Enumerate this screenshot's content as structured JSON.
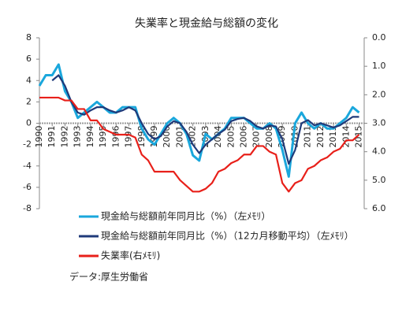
{
  "chart_data": {
    "type": "line",
    "title": "失業率と現金給与総額の変化",
    "source": "データ:厚生労働省",
    "x": [
      1990,
      1990.5,
      1991,
      1991.5,
      1992,
      1992.5,
      1993,
      1993.5,
      1994,
      1994.5,
      1995,
      1995.5,
      1996,
      1996.5,
      1997,
      1997.5,
      1998,
      1998.5,
      1999,
      1999.5,
      2000,
      2000.5,
      2001,
      2001.5,
      2002,
      2002.5,
      2003,
      2003.5,
      2004,
      2004.5,
      2005,
      2005.5,
      2006,
      2006.5,
      2007,
      2007.5,
      2008,
      2008.5,
      2009,
      2009.5,
      2010,
      2010.5,
      2011,
      2011.5,
      2012,
      2012.5,
      2013,
      2013.5,
      2014,
      2014.5,
      2015
    ],
    "series": [
      {
        "name": "現金給与総額前年同月比（%）（左ﾒﾓﾘ）",
        "color": "#1aa7dc",
        "values": [
          3.5,
          4.5,
          4.5,
          5.5,
          3.0,
          2.0,
          0.5,
          1.0,
          1.5,
          2.0,
          1.5,
          1.0,
          1.0,
          1.5,
          1.5,
          1.5,
          -0.5,
          -1.5,
          -2.0,
          -1.0,
          0.0,
          0.5,
          0.0,
          -1.0,
          -3.0,
          -3.5,
          -1.0,
          -1.5,
          -1.0,
          -0.5,
          0.5,
          0.5,
          0.5,
          0.0,
          -0.5,
          -0.5,
          0.0,
          -0.5,
          -2.5,
          -5.0,
          0.0,
          1.0,
          0.0,
          -0.5,
          0.0,
          -0.5,
          -0.5,
          0.0,
          0.5,
          1.5,
          1.0
        ]
      },
      {
        "name": "現金給与総額前年同月比（%）（12カ月移動平均）（左ﾒﾓﾘ）",
        "color": "#1f3a7a",
        "values": [
          null,
          null,
          4.0,
          4.5,
          3.5,
          2.0,
          1.0,
          0.8,
          1.2,
          1.5,
          1.5,
          1.2,
          1.0,
          1.2,
          1.5,
          1.2,
          0.0,
          -1.0,
          -1.5,
          -1.2,
          -0.3,
          0.2,
          0.0,
          -0.8,
          -2.0,
          -2.8,
          -2.0,
          -1.5,
          -1.0,
          -0.6,
          0.2,
          0.4,
          0.5,
          0.2,
          -0.3,
          -0.5,
          -0.2,
          -0.3,
          -1.5,
          -3.8,
          -2.5,
          0.0,
          0.3,
          -0.2,
          0.0,
          -0.2,
          -0.4,
          -0.2,
          0.2,
          0.6,
          0.6
        ]
      },
      {
        "name": "失業率(右ﾒﾓﾘ)",
        "color": "#e8201a",
        "axis": "y2",
        "values": [
          2.1,
          2.1,
          2.1,
          2.1,
          2.2,
          2.2,
          2.5,
          2.5,
          2.9,
          2.9,
          3.2,
          3.3,
          3.4,
          3.4,
          3.4,
          3.5,
          4.1,
          4.3,
          4.7,
          4.7,
          4.7,
          4.7,
          5.0,
          5.2,
          5.4,
          5.4,
          5.3,
          5.1,
          4.7,
          4.6,
          4.4,
          4.3,
          4.1,
          4.1,
          3.8,
          3.8,
          4.0,
          4.1,
          5.1,
          5.4,
          5.1,
          5.0,
          4.6,
          4.5,
          4.3,
          4.2,
          4.0,
          3.9,
          3.6,
          3.6,
          3.4
        ]
      }
    ],
    "xlim": [
      1990,
      2015.4
    ],
    "xticks": [
      1990,
      1991,
      1992,
      1993,
      1994,
      1995,
      1996,
      1997,
      1998,
      1999,
      2000,
      2001,
      2002,
      2003,
      2004,
      2005,
      2006,
      2007,
      2008,
      2009,
      2010,
      2011,
      2012,
      2013,
      2014,
      2015
    ],
    "ylim": [
      -8,
      8
    ],
    "yticks": [
      -8,
      -6,
      -4,
      -2,
      0,
      2,
      4,
      6,
      8
    ],
    "y2lim": [
      0,
      6
    ],
    "y2_inverted": true,
    "y2ticks": [
      {
        "value": 0,
        "label": "0.0"
      },
      {
        "value": 1,
        "label": "1.0"
      },
      {
        "value": 2,
        "label": "2.0"
      },
      {
        "value": 3,
        "label": "3.0"
      },
      {
        "value": 4,
        "label": "4.0"
      },
      {
        "value": 5,
        "label": "5.0"
      },
      {
        "value": 6,
        "label": "6.0"
      }
    ]
  }
}
